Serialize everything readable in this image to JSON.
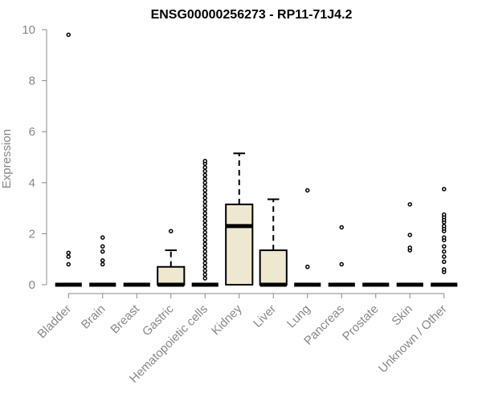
{
  "chart_data": {
    "type": "box",
    "title": "ENSG00000256273 - RP11-71J4.2",
    "xlabel": "",
    "ylabel": "Expression",
    "ylim": [
      0,
      10
    ],
    "yticks": [
      0,
      2,
      4,
      6,
      8,
      10
    ],
    "grid": false,
    "legend": "none",
    "box_fill": "#efe8d0",
    "categories": [
      "Bladder",
      "Brain",
      "Breast",
      "Gastric",
      "Hematopoietic cells",
      "Kidney",
      "Liver",
      "Lung",
      "Pancreas",
      "Prostate",
      "Skin",
      "Unknown / Other"
    ],
    "boxes": [
      {
        "category": "Bladder",
        "q1": 0,
        "median": 0,
        "q3": 0,
        "whisker_low": 0,
        "whisker_high": 0,
        "outliers": [
          0.8,
          1.1,
          1.25,
          9.8
        ]
      },
      {
        "category": "Brain",
        "q1": 0,
        "median": 0,
        "q3": 0,
        "whisker_low": 0,
        "whisker_high": 0,
        "outliers": [
          0.8,
          0.95,
          1.3,
          1.5,
          1.85
        ]
      },
      {
        "category": "Breast",
        "q1": 0,
        "median": 0,
        "q3": 0,
        "whisker_low": 0,
        "whisker_high": 0,
        "outliers": []
      },
      {
        "category": "Gastric",
        "q1": 0,
        "median": 0,
        "q3": 0.7,
        "whisker_low": 0,
        "whisker_high": 1.35,
        "outliers": [
          2.1
        ]
      },
      {
        "category": "Hematopoietic cells",
        "q1": 0,
        "median": 0,
        "q3": 0,
        "whisker_low": 0,
        "whisker_high": 0,
        "outliers": [
          0.25,
          0.4,
          0.55,
          0.7,
          0.85,
          1.0,
          1.15,
          1.3,
          1.45,
          1.6,
          1.75,
          1.9,
          2.05,
          2.2,
          2.35,
          2.5,
          2.65,
          2.8,
          2.95,
          3.1,
          3.25,
          3.4,
          3.55,
          3.7,
          3.85,
          4.0,
          4.15,
          4.3,
          4.45,
          4.6,
          4.75,
          4.85
        ]
      },
      {
        "category": "Kidney",
        "q1": 0,
        "median": 2.3,
        "q3": 3.15,
        "whisker_low": 0,
        "whisker_high": 5.15,
        "outliers": []
      },
      {
        "category": "Liver",
        "q1": 0,
        "median": 0,
        "q3": 1.35,
        "whisker_low": 0,
        "whisker_high": 3.35,
        "outliers": []
      },
      {
        "category": "Lung",
        "q1": 0,
        "median": 0,
        "q3": 0,
        "whisker_low": 0,
        "whisker_high": 0,
        "outliers": [
          0.7,
          3.7
        ]
      },
      {
        "category": "Pancreas",
        "q1": 0,
        "median": 0,
        "q3": 0,
        "whisker_low": 0,
        "whisker_high": 0,
        "outliers": [
          0.8,
          2.25
        ]
      },
      {
        "category": "Prostate",
        "q1": 0,
        "median": 0,
        "q3": 0,
        "whisker_low": 0,
        "whisker_high": 0,
        "outliers": []
      },
      {
        "category": "Skin",
        "q1": 0,
        "median": 0,
        "q3": 0,
        "whisker_low": 0,
        "whisker_high": 0,
        "outliers": [
          1.35,
          1.45,
          1.95,
          3.15
        ]
      },
      {
        "category": "Unknown / Other",
        "q1": 0,
        "median": 0,
        "q3": 0,
        "whisker_low": 0,
        "whisker_high": 0,
        "outliers": [
          0.5,
          0.6,
          0.9,
          1.1,
          1.3,
          1.5,
          1.75,
          1.85,
          2.1,
          2.2,
          2.3,
          2.45,
          2.55,
          2.65,
          2.75,
          3.75
        ]
      }
    ]
  }
}
